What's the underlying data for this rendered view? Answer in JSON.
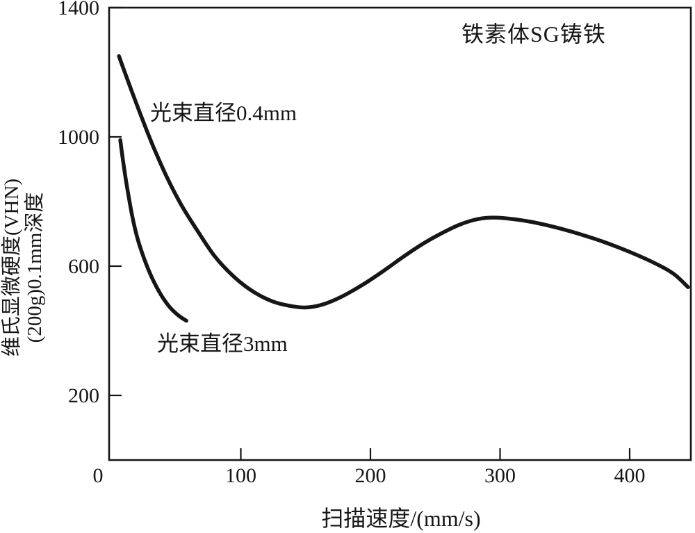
{
  "figure": {
    "background": "#ffffff",
    "ink": "#161616"
  },
  "chart_data": {
    "type": "line",
    "title": "铁素体SG铸铁",
    "xlabel": "扫描速度/(mm/s)",
    "ylabel": [
      "维氏显微硬度(VHN)",
      "(200g)0.1mm深度"
    ],
    "xlim": [
      0,
      450
    ],
    "ylim": [
      0,
      1400
    ],
    "x_ticks": [
      0,
      100,
      200,
      300,
      400
    ],
    "y_ticks": [
      200,
      600,
      1000,
      1400
    ],
    "grid": false,
    "legend_position": "inline-annotations",
    "line_color": "#161616",
    "series": [
      {
        "name": "光束直径0.4mm",
        "points": [
          [
            6,
            1250
          ],
          [
            10,
            1205
          ],
          [
            16,
            1140
          ],
          [
            24,
            1055
          ],
          [
            33,
            965
          ],
          [
            43,
            875
          ],
          [
            54,
            790
          ],
          [
            66,
            713
          ],
          [
            80,
            630
          ],
          [
            95,
            566
          ],
          [
            110,
            520
          ],
          [
            125,
            490
          ],
          [
            138,
            477
          ],
          [
            150,
            472
          ],
          [
            163,
            481
          ],
          [
            178,
            506
          ],
          [
            195,
            545
          ],
          [
            210,
            585
          ],
          [
            225,
            628
          ],
          [
            240,
            668
          ],
          [
            255,
            702
          ],
          [
            268,
            727
          ],
          [
            280,
            743
          ],
          [
            292,
            750
          ],
          [
            305,
            748
          ],
          [
            320,
            740
          ],
          [
            340,
            723
          ],
          [
            360,
            701
          ],
          [
            380,
            675
          ],
          [
            400,
            644
          ],
          [
            420,
            608
          ],
          [
            434,
            576
          ],
          [
            445,
            535
          ]
        ]
      },
      {
        "name": "光束直径3mm",
        "points": [
          [
            7,
            990
          ],
          [
            9,
            930
          ],
          [
            12,
            850
          ],
          [
            16,
            760
          ],
          [
            20,
            690
          ],
          [
            25,
            628
          ],
          [
            31,
            568
          ],
          [
            38,
            514
          ],
          [
            45,
            474
          ],
          [
            52,
            447
          ],
          [
            58,
            431
          ]
        ]
      }
    ]
  }
}
